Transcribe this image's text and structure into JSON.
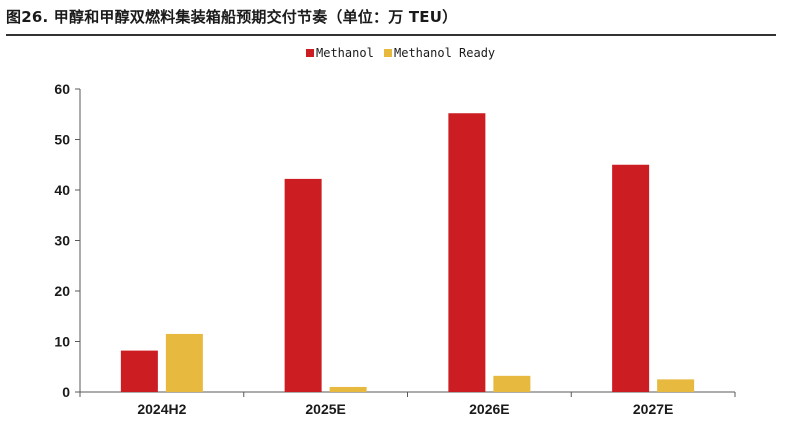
{
  "figure": {
    "title": "图26. 甲醇和甲醇双燃料集装箱船预期交付节奏（单位：万 TEU）"
  },
  "colors": {
    "methanol": "#cc1d23",
    "methanol_ready": "#e8b93f",
    "axis": "#595959",
    "text": "#1a1a1a"
  },
  "chart_data": {
    "type": "bar",
    "title": "",
    "xlabel": "",
    "ylabel": "",
    "categories": [
      "2024H2",
      "2025E",
      "2026E",
      "2027E"
    ],
    "series": [
      {
        "name": "Methanol",
        "values": [
          8.2,
          42.2,
          55.2,
          45.0
        ]
      },
      {
        "name": "Methanol Ready",
        "values": [
          11.5,
          1.0,
          3.2,
          2.5
        ]
      }
    ],
    "ylim": [
      0,
      60
    ],
    "yticks": [
      0,
      10,
      20,
      30,
      40,
      50,
      60
    ],
    "grid": false,
    "legend_position": "top-center"
  }
}
